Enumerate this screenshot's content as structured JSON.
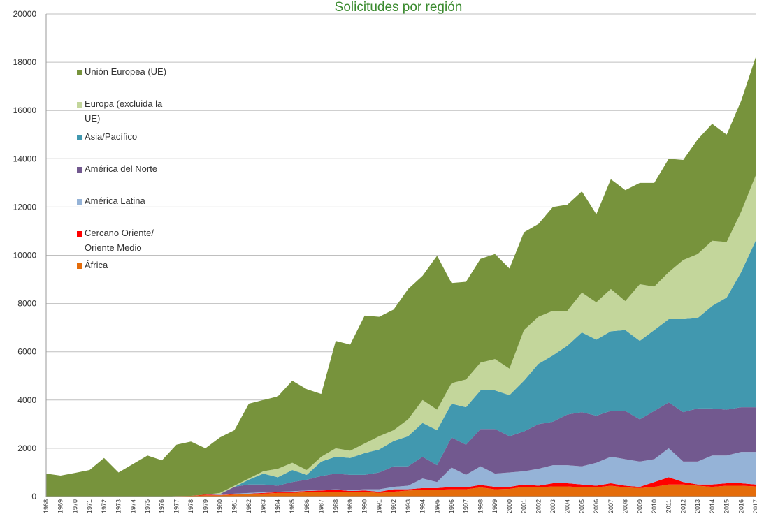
{
  "chart_data": {
    "type": "stacked_area",
    "title": "Solicitudes por región",
    "categories": [
      "1968",
      "1969",
      "1970",
      "1971",
      "1972",
      "1973",
      "1974",
      "1975",
      "1976",
      "1977",
      "1978",
      "1979",
      "1980",
      "1981",
      "1982",
      "1983",
      "1984",
      "1985",
      "1986",
      "1987",
      "1988",
      "1989",
      "1990",
      "1991",
      "1992",
      "1993",
      "1994",
      "1995",
      "1996",
      "1997",
      "1998",
      "1999",
      "2000",
      "2001",
      "2002",
      "2003",
      "2004",
      "2005",
      "2006",
      "2007",
      "2008",
      "2009",
      "2010",
      "2011",
      "2012",
      "2013",
      "2014",
      "2015",
      "2016",
      "2017"
    ],
    "ylim": [
      0,
      20000
    ],
    "yticks": [
      0,
      2000,
      4000,
      6000,
      8000,
      10000,
      12000,
      14000,
      16000,
      18000,
      20000
    ],
    "grid": true,
    "series": [
      {
        "name": "África",
        "color": "#e46c0a",
        "values": [
          0,
          0,
          0,
          0,
          0,
          0,
          0,
          0,
          0,
          20,
          30,
          50,
          50,
          80,
          100,
          120,
          150,
          150,
          180,
          200,
          200,
          180,
          200,
          150,
          200,
          250,
          280,
          280,
          300,
          300,
          380,
          300,
          320,
          400,
          380,
          420,
          420,
          380,
          380,
          450,
          380,
          350,
          400,
          500,
          500,
          450,
          400,
          450,
          450,
          420
        ]
      },
      {
        "name": "Cercano Oriente/ Oriente Medio",
        "color": "#ff0000",
        "values": [
          0,
          0,
          0,
          0,
          0,
          0,
          0,
          0,
          0,
          0,
          0,
          30,
          10,
          20,
          20,
          30,
          30,
          50,
          50,
          50,
          80,
          50,
          50,
          50,
          100,
          50,
          70,
          70,
          100,
          80,
          100,
          100,
          80,
          100,
          70,
          130,
          130,
          120,
          70,
          100,
          70,
          50,
          200,
          300,
          100,
          50,
          100,
          100,
          100,
          80
        ]
      },
      {
        "name": "América Latina",
        "color": "#95b3d7",
        "values": [
          0,
          0,
          0,
          0,
          0,
          0,
          0,
          0,
          0,
          0,
          0,
          0,
          20,
          20,
          30,
          30,
          20,
          20,
          20,
          20,
          20,
          40,
          50,
          100,
          100,
          150,
          400,
          250,
          800,
          520,
          770,
          550,
          600,
          550,
          700,
          750,
          750,
          750,
          950,
          1100,
          1100,
          1050,
          950,
          1200,
          850,
          950,
          1200,
          1150,
          1300,
          1350
        ]
      },
      {
        "name": "América del Norte",
        "color": "#72598f",
        "values": [
          0,
          0,
          0,
          0,
          0,
          0,
          0,
          0,
          0,
          0,
          0,
          0,
          20,
          280,
          350,
          320,
          250,
          380,
          450,
          580,
          650,
          630,
          600,
          700,
          850,
          800,
          900,
          700,
          1250,
          1250,
          1550,
          1850,
          1500,
          1650,
          1850,
          1800,
          2100,
          2250,
          1950,
          1900,
          2000,
          1750,
          2000,
          1900,
          2050,
          2200,
          1950,
          1900,
          1850,
          1850
        ]
      },
      {
        "name": "Asia/Pacífico",
        "color": "#4198af",
        "values": [
          0,
          0,
          0,
          0,
          0,
          0,
          0,
          0,
          0,
          0,
          0,
          0,
          0,
          0,
          200,
          450,
          350,
          500,
          200,
          600,
          700,
          700,
          900,
          950,
          1050,
          1250,
          1400,
          1450,
          1400,
          1550,
          1600,
          1600,
          1700,
          2100,
          2500,
          2750,
          2850,
          3300,
          3150,
          3300,
          3350,
          3250,
          3350,
          3450,
          3850,
          3750,
          4250,
          4650,
          5600,
          6900
        ]
      },
      {
        "name": "Europa (excluida la UE)",
        "color": "#c3d69b",
        "values": [
          0,
          0,
          0,
          0,
          0,
          0,
          0,
          0,
          0,
          0,
          0,
          0,
          50,
          50,
          50,
          100,
          350,
          300,
          200,
          200,
          350,
          300,
          400,
          550,
          450,
          700,
          950,
          850,
          850,
          1150,
          1150,
          1300,
          1100,
          2100,
          1950,
          1850,
          1450,
          1650,
          1550,
          1750,
          1200,
          2350,
          1800,
          1950,
          2450,
          2650,
          2700,
          2300,
          2500,
          2700
        ]
      },
      {
        "name": "Unión Europea (UE)",
        "color": "#77933c",
        "values": [
          950,
          870,
          980,
          1100,
          1600,
          1000,
          1350,
          1700,
          1500,
          2130,
          2250,
          1920,
          2300,
          2300,
          3100,
          2950,
          3000,
          3400,
          3350,
          2600,
          4450,
          4400,
          5300,
          4950,
          5000,
          5400,
          5150,
          6380,
          4150,
          4050,
          4300,
          4350,
          4150,
          4050,
          3850,
          4300,
          4400,
          4200,
          3650,
          4550,
          4600,
          4200,
          4300,
          4700,
          4150,
          4750,
          4850,
          4450,
          4600,
          4900
        ]
      }
    ]
  }
}
